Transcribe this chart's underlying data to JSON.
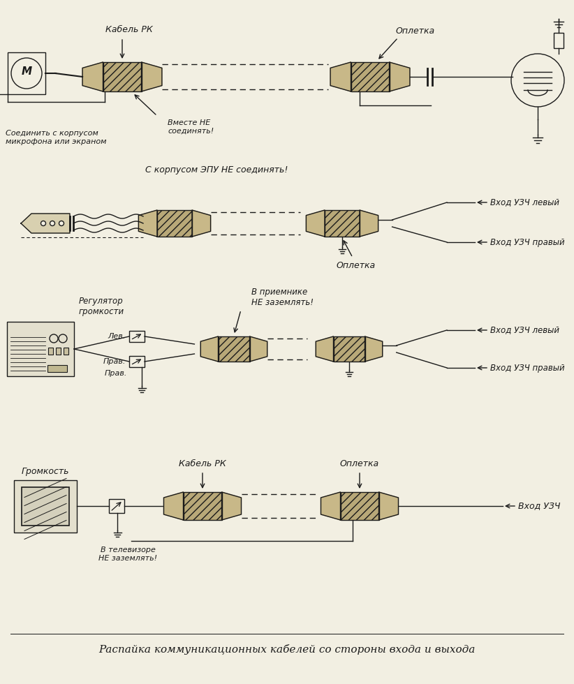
{
  "bg_color": "#f2efe2",
  "line_color": "#1a1a1a",
  "title_bottom": "Распайка коммуникационных кабелей со стороны входа и выхода",
  "d1_labels": {
    "cable": "Кабель РК",
    "opl": "Оплетка",
    "vmeste": "Вместе НЕ\nсоединять!",
    "soed": "Соединить с корпусом\nмикрофона или экраном"
  },
  "d2_labels": {
    "top": "С корпусом ЭПУ НЕ соединять!",
    "opl": "Оплетка",
    "lev": "Вход УЗЧ левый",
    "prav": "Вход УЗЧ правый"
  },
  "d3_labels": {
    "reg": "Регулятор\nгромкости",
    "prim": "В приемнике\nНЕ заземлять!",
    "lev_tag": "Лев.",
    "prav_tag": "Прав.",
    "lev": "Вход УЗЧ левый",
    "prav": "Вход УЗЧ правый"
  },
  "d4_labels": {
    "grom": "Громкость",
    "cable": "Кабель РК",
    "opl": "Оплетка",
    "tv": "В телевизоре\nНЕ заземлять!",
    "uzch": "Вход УЗЧ"
  }
}
